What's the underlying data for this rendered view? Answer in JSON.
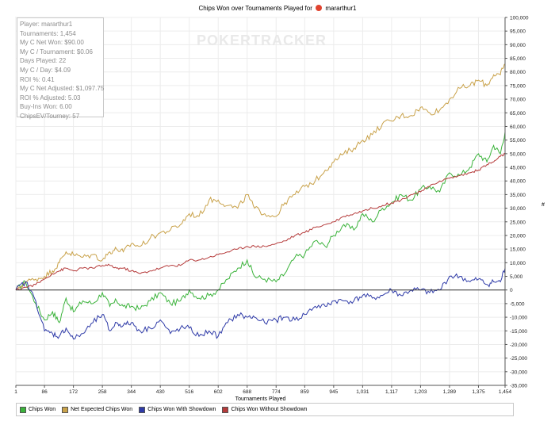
{
  "window": {
    "title_prefix": "Chips Won over Tournaments Played for",
    "player_name": "mararthur1",
    "logo_icon": "pokerstars-icon"
  },
  "watermark": "POKERTRACKER",
  "stats_box": {
    "lines": [
      "Player: mararthur1",
      "Tournaments: 1,454",
      "My C Net Won: $90.00",
      "My C / Tournament: $0.06",
      "Days Played: 22",
      "My C / Day: $4.09",
      "ROI %: 0.41",
      "My C Net Adjusted: $1,097.75",
      "ROI % Adjusted: 5.03",
      "Buy-Ins Won: 6.00",
      "ChipsEV/Tourney: 57"
    ]
  },
  "chart_data": {
    "type": "line",
    "title": "Chips Won over Tournaments Played for mararthur1",
    "xlabel": "Tournaments Played",
    "ylabel": "#",
    "xlim": [
      1,
      1454
    ],
    "ylim": [
      -35000,
      100000
    ],
    "x_ticks": [
      "1",
      "86",
      "172",
      "258",
      "344",
      "430",
      "516",
      "602",
      "688",
      "774",
      "859",
      "945",
      "1,031",
      "1,117",
      "1,203",
      "1,289",
      "1,375",
      "1,454"
    ],
    "y_ticks": [
      "100,000",
      "95,000",
      "90,000",
      "85,000",
      "80,000",
      "75,000",
      "70,000",
      "65,000",
      "60,000",
      "55,000",
      "50,000",
      "45,000",
      "40,000",
      "35,000",
      "30,000",
      "25,000",
      "20,000",
      "15,000",
      "10,000",
      "5,000",
      "0",
      "-5,000",
      "-10,000",
      "-15,000",
      "-20,000",
      "-25,000",
      "-30,000",
      "-35,000"
    ],
    "grid": true,
    "legend_position": "bottom",
    "series": [
      {
        "name": "Chips Won",
        "color": "#3bb33b",
        "x": [
          1,
          30,
          60,
          86,
          110,
          130,
          150,
          172,
          200,
          230,
          258,
          280,
          300,
          320,
          344,
          370,
          400,
          430,
          460,
          490,
          516,
          545,
          575,
          602,
          630,
          660,
          688,
          710,
          740,
          774,
          800,
          830,
          859,
          890,
          920,
          945,
          975,
          1005,
          1031,
          1060,
          1090,
          1117,
          1145,
          1175,
          1203,
          1230,
          1260,
          1289,
          1320,
          1350,
          1375,
          1400,
          1420,
          1440,
          1454
        ],
        "y": [
          0,
          3000,
          -5000,
          -11000,
          -8000,
          -12000,
          -3000,
          -8000,
          -4000,
          -5000,
          -1000,
          -6000,
          -4000,
          -6000,
          -6000,
          -7000,
          -4000,
          -1000,
          -5000,
          -4000,
          0,
          -3000,
          -2000,
          0,
          4000,
          8000,
          11000,
          5000,
          4000,
          3000,
          6000,
          12000,
          13000,
          18000,
          16000,
          20000,
          24000,
          22000,
          28000,
          25000,
          30000,
          32000,
          35000,
          33000,
          37000,
          38000,
          36000,
          43000,
          42000,
          45000,
          50000,
          47000,
          53000,
          50000,
          58000
        ]
      },
      {
        "name": "Net Expected Chips Won",
        "color": "#c9a24a",
        "x": [
          1,
          30,
          60,
          86,
          110,
          130,
          150,
          172,
          200,
          230,
          258,
          280,
          300,
          320,
          344,
          370,
          400,
          430,
          460,
          490,
          516,
          545,
          575,
          602,
          630,
          660,
          688,
          710,
          740,
          774,
          800,
          830,
          859,
          890,
          920,
          945,
          975,
          1005,
          1031,
          1060,
          1090,
          1117,
          1145,
          1175,
          1203,
          1230,
          1260,
          1289,
          1320,
          1350,
          1375,
          1400,
          1420,
          1440,
          1454
        ],
        "y": [
          0,
          3000,
          4000,
          5000,
          7000,
          10000,
          14000,
          13000,
          12000,
          13000,
          11000,
          14000,
          15000,
          14000,
          17000,
          16000,
          19000,
          21000,
          22000,
          24000,
          28000,
          27000,
          33000,
          33000,
          31000,
          30000,
          35000,
          30000,
          28000,
          27000,
          32000,
          35000,
          38000,
          40000,
          44000,
          47000,
          50000,
          52000,
          55000,
          57000,
          61000,
          62000,
          64000,
          64000,
          67000,
          65000,
          66000,
          70000,
          74000,
          75000,
          77000,
          75000,
          79000,
          79000,
          83000
        ]
      },
      {
        "name": "Chips Won With Showdown",
        "color": "#2f3ba8",
        "x": [
          1,
          30,
          60,
          86,
          110,
          130,
          150,
          172,
          200,
          230,
          258,
          280,
          300,
          320,
          344,
          370,
          400,
          430,
          460,
          490,
          516,
          545,
          575,
          602,
          630,
          660,
          688,
          710,
          740,
          774,
          800,
          830,
          859,
          890,
          920,
          945,
          975,
          1005,
          1031,
          1060,
          1090,
          1117,
          1145,
          1175,
          1203,
          1230,
          1260,
          1289,
          1320,
          1350,
          1375,
          1400,
          1420,
          1440,
          1454
        ],
        "y": [
          0,
          3000,
          -4000,
          -15000,
          -16000,
          -17000,
          -14000,
          -18000,
          -16000,
          -12000,
          -9000,
          -15000,
          -12000,
          -13000,
          -12000,
          -15000,
          -14000,
          -11000,
          -16000,
          -14000,
          -14000,
          -17000,
          -15000,
          -17000,
          -12000,
          -9000,
          -10000,
          -10000,
          -12000,
          -11000,
          -10000,
          -11000,
          -9000,
          -6000,
          -6000,
          -4000,
          -4000,
          -4000,
          -2000,
          -3000,
          -2000,
          0,
          -2000,
          0,
          0,
          -1000,
          0,
          5000,
          5000,
          3000,
          4000,
          2000,
          3000,
          3000,
          8000
        ]
      },
      {
        "name": "Chips Won Without Showdown",
        "color": "#b53a3a",
        "x": [
          1,
          30,
          60,
          86,
          110,
          130,
          150,
          172,
          200,
          230,
          258,
          280,
          300,
          320,
          344,
          370,
          400,
          430,
          460,
          490,
          516,
          545,
          575,
          602,
          630,
          660,
          688,
          710,
          740,
          774,
          800,
          830,
          859,
          890,
          920,
          945,
          975,
          1005,
          1031,
          1060,
          1090,
          1117,
          1145,
          1175,
          1203,
          1230,
          1260,
          1289,
          1320,
          1350,
          1375,
          1400,
          1420,
          1440,
          1454
        ],
        "y": [
          0,
          1000,
          2000,
          4000,
          6000,
          7000,
          8000,
          7000,
          8000,
          8000,
          9000,
          9000,
          8000,
          8000,
          7000,
          6000,
          7000,
          8000,
          9000,
          9000,
          11000,
          11000,
          12000,
          13000,
          14000,
          15000,
          16000,
          16000,
          16000,
          17000,
          18000,
          20000,
          21000,
          23000,
          24000,
          25000,
          27000,
          28000,
          29000,
          30000,
          31000,
          32000,
          33000,
          35000,
          36000,
          38000,
          40000,
          41000,
          42000,
          43000,
          44000,
          46000,
          47000,
          49000,
          50000
        ]
      }
    ]
  }
}
